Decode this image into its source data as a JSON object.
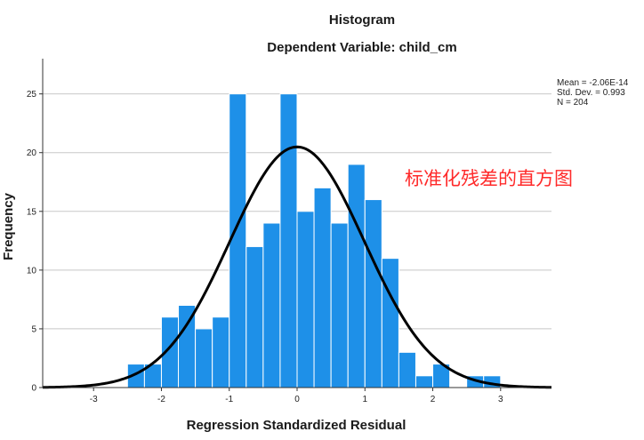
{
  "chart_data": {
    "type": "bar",
    "title": "Histogram",
    "subtitle": "Dependent Variable: child_cm",
    "xlabel": "Regression Standardized Residual",
    "ylabel": "Frequency",
    "xlim": [
      -3.75,
      3.75
    ],
    "ylim": [
      0,
      28
    ],
    "x_ticks": [
      -3,
      -2,
      -1,
      0,
      1,
      2,
      3
    ],
    "y_ticks": [
      0,
      5,
      10,
      15,
      20,
      25
    ],
    "grid": "horizontal",
    "bin_width": 0.25,
    "bins": [
      {
        "start": -2.5,
        "count": 2
      },
      {
        "start": -2.25,
        "count": 2
      },
      {
        "start": -2.0,
        "count": 6
      },
      {
        "start": -1.75,
        "count": 7
      },
      {
        "start": -1.5,
        "count": 5
      },
      {
        "start": -1.25,
        "count": 6
      },
      {
        "start": -1.0,
        "count": 25
      },
      {
        "start": -0.75,
        "count": 12
      },
      {
        "start": -0.5,
        "count": 14
      },
      {
        "start": -0.25,
        "count": 25
      },
      {
        "start": 0.0,
        "count": 15
      },
      {
        "start": 0.25,
        "count": 17
      },
      {
        "start": 0.5,
        "count": 14
      },
      {
        "start": 0.75,
        "count": 19
      },
      {
        "start": 1.0,
        "count": 16
      },
      {
        "start": 1.25,
        "count": 11
      },
      {
        "start": 1.5,
        "count": 3
      },
      {
        "start": 1.75,
        "count": 1
      },
      {
        "start": 2.0,
        "count": 2
      },
      {
        "start": 2.25,
        "count": 0
      },
      {
        "start": 2.5,
        "count": 1
      },
      {
        "start": 2.75,
        "count": 1
      }
    ],
    "normal_curve": {
      "mean": 0,
      "sd": 0.993,
      "n": 204
    },
    "stats": {
      "mean_label": "Mean = -2.06E-14",
      "sd_label": "Std. Dev. = 0.993",
      "n_label": "N = 204"
    },
    "annotation": "标准化残差的直方图",
    "colors": {
      "bar_fill": "#1e90e8",
      "bar_stroke": "#ffffff",
      "curve": "#000000",
      "grid": "#c8c8c8",
      "annotation": "#ff2a2a"
    }
  }
}
